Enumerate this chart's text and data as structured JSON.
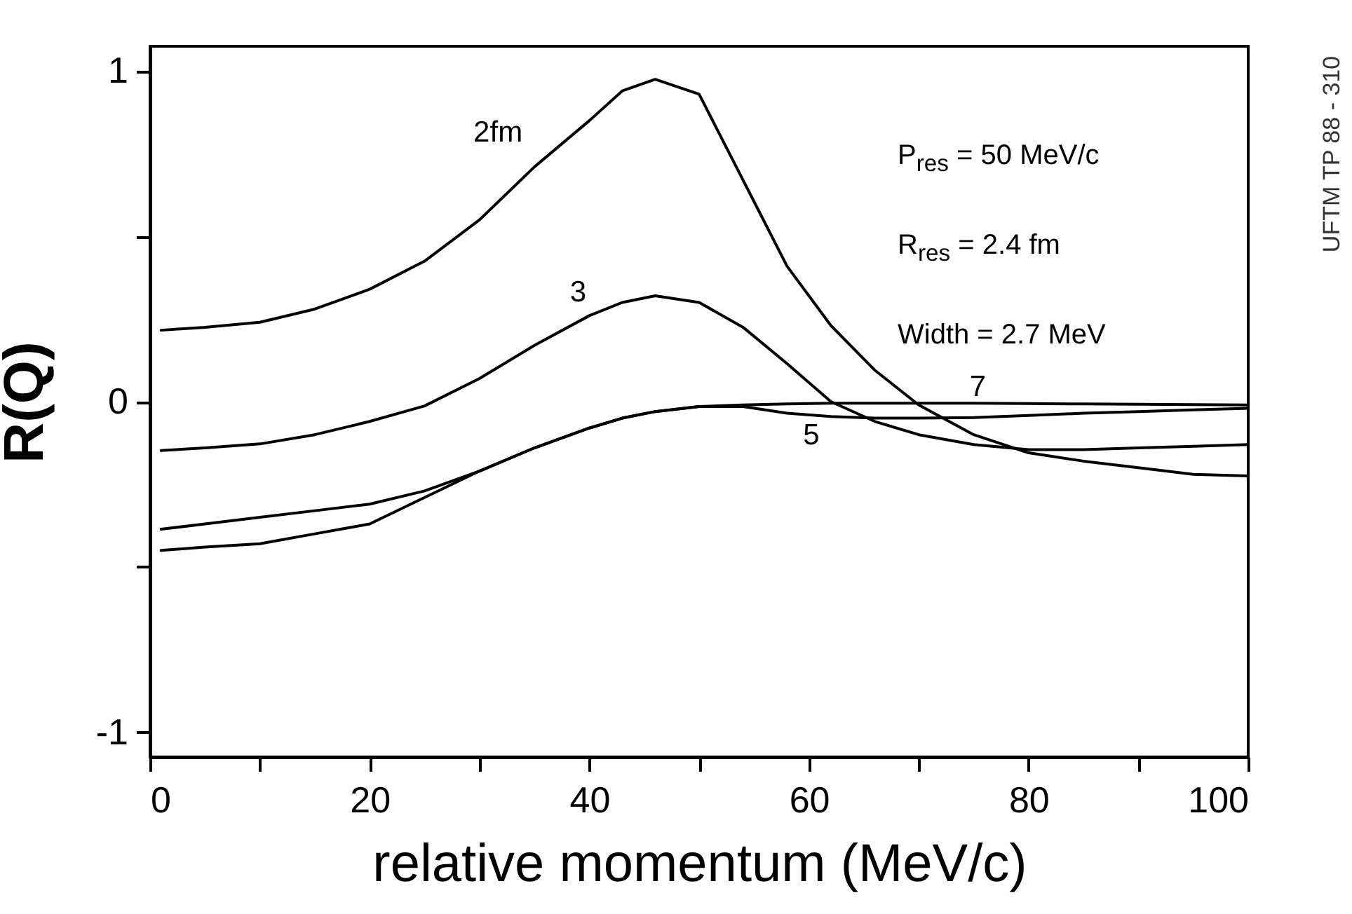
{
  "chart_data": {
    "type": "line",
    "xlabel": "relative momentum (MeV/c)",
    "ylabel": "R(Q)",
    "x": [
      1,
      5,
      10,
      15,
      20,
      25,
      30,
      35,
      40,
      43,
      46,
      50,
      54,
      58,
      62,
      66,
      70,
      75,
      80,
      85,
      90,
      95,
      100
    ],
    "series": [
      {
        "name": "2fm",
        "color": "#000000",
        "values": [
          0.216,
          0.225,
          0.24,
          0.28,
          0.34,
          0.425,
          0.55,
          0.71,
          0.85,
          0.94,
          0.975,
          0.93,
          0.67,
          0.41,
          0.23,
          0.095,
          -0.01,
          -0.1,
          -0.155,
          -0.18,
          -0.2,
          -0.22,
          -0.225
        ]
      },
      {
        "name": "3",
        "color": "#000000",
        "values": [
          -0.148,
          -0.14,
          -0.128,
          -0.1,
          -0.06,
          -0.013,
          0.07,
          0.17,
          0.26,
          0.3,
          0.32,
          0.3,
          0.225,
          0.115,
          0.0,
          -0.06,
          -0.1,
          -0.13,
          -0.145,
          -0.145,
          -0.14,
          -0.135,
          -0.13
        ]
      },
      {
        "name": "5",
        "color": "#000000",
        "values": [
          -0.45,
          -0.44,
          -0.43,
          -0.4,
          -0.37,
          -0.29,
          -0.21,
          -0.14,
          -0.08,
          -0.05,
          -0.03,
          -0.015,
          -0.015,
          -0.035,
          -0.045,
          -0.05,
          -0.05,
          -0.048,
          -0.042,
          -0.035,
          -0.03,
          -0.025,
          -0.02
        ]
      },
      {
        "name": "7",
        "color": "#000000",
        "values": [
          -0.386,
          -0.37,
          -0.35,
          -0.33,
          -0.31,
          -0.27,
          -0.21,
          -0.14,
          -0.08,
          -0.05,
          -0.03,
          -0.015,
          -0.01,
          -0.007,
          -0.005,
          -0.005,
          -0.005,
          -0.005,
          -0.006,
          -0.007,
          -0.008,
          -0.009,
          -0.01
        ]
      }
    ],
    "xlim": [
      0,
      100
    ],
    "xticks": [
      0,
      {
        "value": 10,
        "label": null
      },
      20,
      {
        "value": 30,
        "label": null
      },
      40,
      {
        "value": 50,
        "label": null
      },
      60,
      {
        "value": 70,
        "label": null
      },
      80,
      {
        "value": 90,
        "label": null
      },
      100
    ],
    "ylim": [
      -1.075,
      1.075
    ],
    "yticks": [
      -1,
      {
        "value": -0.5,
        "label": null
      },
      0,
      {
        "value": 0.5,
        "label": null
      },
      1
    ],
    "annotations": [
      "P$_{res}$ = 50 MeV/c",
      "R$_{res}$ = 2.4 fm",
      "Width = 2.7 MeV",
      "UFTM TP 88 - 310"
    ]
  }
}
